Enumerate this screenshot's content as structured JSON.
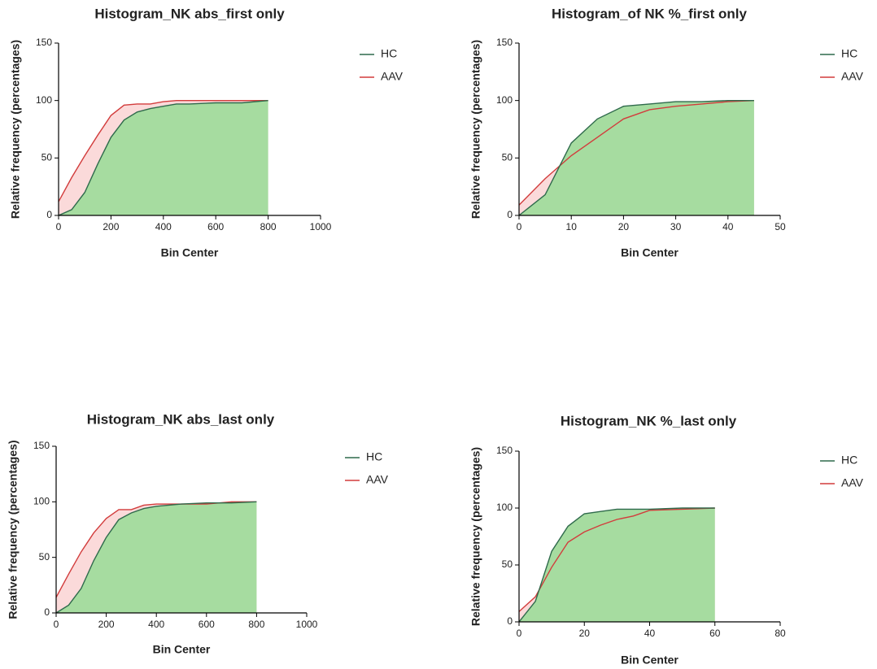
{
  "chart_data": [
    {
      "type": "area",
      "title": "Histogram_NK abs_first only",
      "x_label": "Bin Center",
      "y_label": "Relative frequency (percentages)",
      "x": [
        0,
        50,
        100,
        150,
        200,
        250,
        300,
        350,
        400,
        450,
        500,
        600,
        700,
        800
      ],
      "series": [
        {
          "name": "HC",
          "color": "#2f6a4c",
          "fill": "#a6dca0",
          "values": [
            0,
            5,
            20,
            45,
            68,
            83,
            90,
            93,
            95,
            97,
            97,
            98,
            98,
            100
          ]
        },
        {
          "name": "AAV",
          "color": "#d23c3c",
          "fill": "#fbdada",
          "values": [
            12,
            33,
            52,
            70,
            87,
            96,
            97,
            97,
            99,
            100,
            100,
            100,
            100,
            100
          ]
        }
      ],
      "xlim": [
        0,
        1000
      ],
      "xticks": [
        0,
        200,
        400,
        600,
        800,
        1000
      ],
      "ylim": [
        0,
        150
      ],
      "yticks": [
        0,
        50,
        100,
        150
      ],
      "legend": "right"
    },
    {
      "type": "area",
      "title": "Histogram_of NK %_first only",
      "x_label": "Bin Center",
      "y_label": "Relative frequency (percentages)",
      "x": [
        0,
        5,
        10,
        15,
        20,
        25,
        30,
        35,
        40,
        45
      ],
      "series": [
        {
          "name": "HC",
          "color": "#2f6a4c",
          "fill": "#a6dca0",
          "values": [
            0,
            18,
            63,
            84,
            95,
            97,
            99,
            99,
            100,
            100
          ]
        },
        {
          "name": "AAV",
          "color": "#d23c3c",
          "fill": "#fbdada",
          "values": [
            9,
            32,
            52,
            68,
            84,
            92,
            95,
            97,
            99,
            100
          ]
        }
      ],
      "xlim": [
        0,
        50
      ],
      "xticks": [
        0,
        10,
        20,
        30,
        40,
        50
      ],
      "ylim": [
        0,
        150
      ],
      "yticks": [
        0,
        50,
        100,
        150
      ],
      "legend": "right"
    },
    {
      "type": "area",
      "title": "Histogram_NK abs_last only",
      "x_label": "Bin Center",
      "y_label": "Relative frequency (percentages)",
      "x": [
        0,
        50,
        100,
        150,
        200,
        250,
        300,
        350,
        400,
        450,
        500,
        600,
        700,
        800
      ],
      "series": [
        {
          "name": "HC",
          "color": "#2f6a4c",
          "fill": "#a6dca0",
          "values": [
            0,
            7,
            22,
            47,
            68,
            84,
            90,
            94,
            96,
            97,
            98,
            99,
            99,
            100
          ]
        },
        {
          "name": "AAV",
          "color": "#d23c3c",
          "fill": "#fbdada",
          "values": [
            14,
            35,
            55,
            72,
            85,
            93,
            93,
            97,
            98,
            98,
            98,
            98,
            100,
            100
          ]
        }
      ],
      "xlim": [
        0,
        1000
      ],
      "xticks": [
        0,
        200,
        400,
        600,
        800,
        1000
      ],
      "ylim": [
        0,
        150
      ],
      "yticks": [
        0,
        50,
        100,
        150
      ],
      "legend": "right"
    },
    {
      "type": "area",
      "title": "Histogram_NK %_last only",
      "x_label": "Bin Center",
      "y_label": "Relative frequency (percentages)",
      "x": [
        0,
        5,
        10,
        15,
        20,
        25,
        30,
        35,
        40,
        50,
        60
      ],
      "series": [
        {
          "name": "HC",
          "color": "#2f6a4c",
          "fill": "#a6dca0",
          "values": [
            0,
            18,
            62,
            84,
            95,
            97,
            99,
            99,
            99,
            100,
            100
          ]
        },
        {
          "name": "AAV",
          "color": "#d23c3c",
          "fill": "#fbdada",
          "values": [
            9,
            22,
            48,
            70,
            79,
            85,
            90,
            93,
            98,
            99,
            100
          ]
        }
      ],
      "xlim": [
        0,
        80
      ],
      "xticks": [
        0,
        20,
        40,
        60,
        80
      ],
      "ylim": [
        0,
        150
      ],
      "yticks": [
        0,
        50,
        100,
        150
      ],
      "legend": "right"
    }
  ]
}
